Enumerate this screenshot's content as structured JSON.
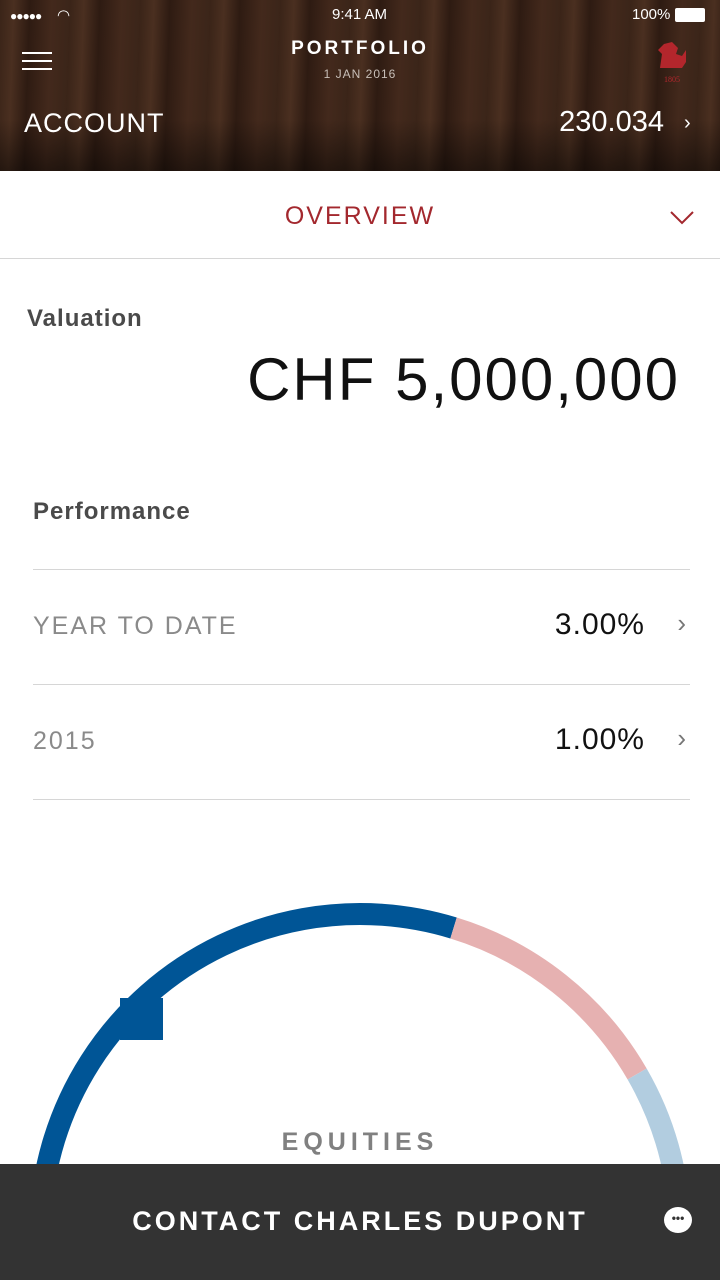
{
  "status_bar": {
    "signal": "●●●●●",
    "time": "9:41 AM",
    "battery": "100%"
  },
  "header": {
    "title": "PORTFOLIO",
    "date": "1 JAN 2016",
    "logo_text": "1805",
    "account_label": "ACCOUNT",
    "account_number": "230.034"
  },
  "overview": {
    "label": "OVERVIEW",
    "accent": "#a3282e"
  },
  "valuation": {
    "label": "Valuation",
    "amount": "CHF 5,000,000"
  },
  "performance": {
    "label": "Performance",
    "rows": [
      {
        "label": "YEAR TO DATE",
        "value": "3.00%"
      },
      {
        "label": "2015",
        "value": "1.00%"
      }
    ]
  },
  "allocation": {
    "label": "EQUITIES",
    "segment_colors": [
      "#005596",
      "#e6b1b1",
      "#b2cde0"
    ]
  },
  "footer": {
    "contact_label": "CONTACT CHARLES DUPONT"
  }
}
